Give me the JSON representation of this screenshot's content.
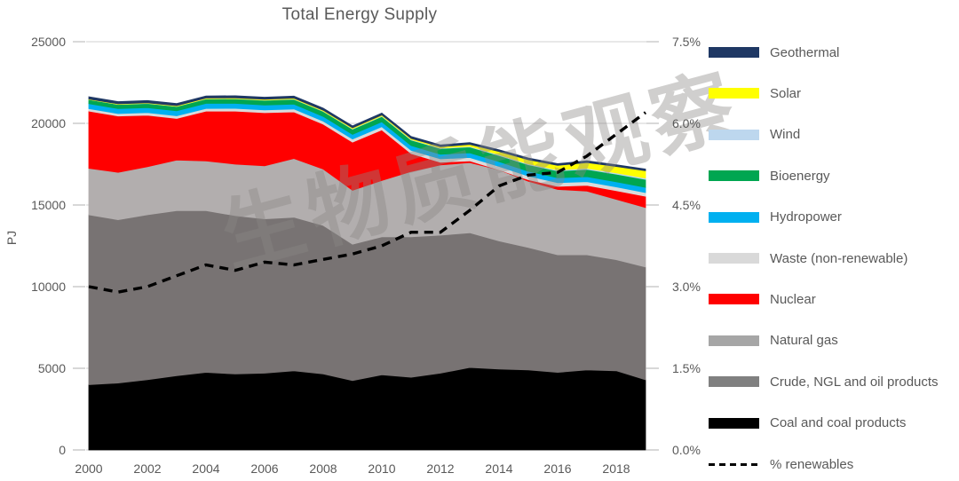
{
  "chart_data": {
    "type": "area",
    "variant": "stacked-area-with-percentage-line",
    "title": "Total Energy Supply",
    "watermark_text": "生物质能观察",
    "x": {
      "years": [
        2000,
        2001,
        2002,
        2003,
        2004,
        2005,
        2006,
        2007,
        2008,
        2009,
        2010,
        2011,
        2012,
        2013,
        2014,
        2015,
        2016,
        2017,
        2018,
        2019
      ],
      "tick_labels": [
        "2000",
        "2002",
        "2004",
        "2006",
        "2008",
        "2010",
        "2012",
        "2014",
        "2016",
        "2018"
      ]
    },
    "y_left": {
      "label": "PJ",
      "min": 0,
      "max": 25000,
      "tick_labels": [
        "0",
        "5000",
        "10000",
        "15000",
        "20000",
        "25000"
      ]
    },
    "y_right": {
      "label": "",
      "min": 0,
      "max": 7.5,
      "tick_labels": [
        "0.0%",
        "1.5%",
        "3.0%",
        "4.5%",
        "6.0%",
        "7.5%"
      ]
    },
    "grid": "horizontal-light-gray",
    "series_stack_bottom_to_top": [
      {
        "key": "coal",
        "name": "Coal and coal products",
        "color": "#000000",
        "values": [
          4000,
          4100,
          4300,
          4550,
          4750,
          4650,
          4700,
          4850,
          4650,
          4250,
          4600,
          4450,
          4700,
          5050,
          4950,
          4900,
          4750,
          4900,
          4850,
          4300
        ]
      },
      {
        "key": "crude",
        "name": "Crude, NGL and oil products",
        "color": "#787373",
        "values": [
          10400,
          10000,
          10100,
          10100,
          9900,
          9700,
          9450,
          9400,
          9100,
          8350,
          8450,
          8600,
          8450,
          8250,
          7850,
          7500,
          7200,
          7050,
          6800,
          6900
        ]
      },
      {
        "key": "gas",
        "name": "Natural gas",
        "color": "#b2aeae",
        "values": [
          2850,
          2900,
          2950,
          3100,
          3050,
          3150,
          3250,
          3600,
          3450,
          3300,
          3450,
          4000,
          4300,
          4300,
          4350,
          4050,
          4000,
          3900,
          3700,
          3650
        ]
      },
      {
        "key": "nuclear",
        "name": "Nuclear",
        "color": "#ff0000",
        "values": [
          3500,
          3450,
          3150,
          2550,
          3050,
          3250,
          3250,
          2850,
          2750,
          2950,
          3100,
          1100,
          170,
          100,
          0,
          100,
          190,
          350,
          530,
          680
        ]
      },
      {
        "key": "waste",
        "name": "Waste (non-renewable)",
        "color": "#dadada",
        "values": [
          150,
          150,
          155,
          160,
          165,
          170,
          175,
          180,
          185,
          190,
          195,
          200,
          205,
          210,
          215,
          220,
          225,
          230,
          230,
          230
        ]
      },
      {
        "key": "hydro",
        "name": "Hydropower",
        "color": "#00b0f0",
        "values": [
          305,
          300,
          305,
          310,
          310,
          305,
          300,
          295,
          290,
          285,
          300,
          290,
          280,
          285,
          290,
          295,
          300,
          305,
          310,
          320
        ]
      },
      {
        "key": "bio",
        "name": "Bioenergy",
        "color": "#00a651",
        "values": [
          250,
          255,
          260,
          265,
          270,
          280,
          290,
          300,
          310,
          320,
          330,
          340,
          350,
          360,
          380,
          400,
          420,
          450,
          470,
          490
        ]
      },
      {
        "key": "wind",
        "name": "Wind",
        "color": "#bdd7ee",
        "values": [
          5,
          6,
          8,
          10,
          12,
          14,
          16,
          18,
          20,
          25,
          30,
          35,
          40,
          45,
          50,
          55,
          60,
          65,
          70,
          80
        ]
      },
      {
        "key": "solar",
        "name": "Solar",
        "color": "#ffff00",
        "values": [
          30,
          32,
          35,
          38,
          40,
          42,
          45,
          48,
          50,
          52,
          55,
          60,
          70,
          110,
          190,
          250,
          280,
          350,
          400,
          450
        ]
      },
      {
        "key": "geo",
        "name": "Geothermal",
        "color": "#1f3864",
        "values": [
          140,
          138,
          136,
          134,
          132,
          130,
          128,
          126,
          124,
          122,
          120,
          118,
          116,
          114,
          112,
          110,
          108,
          106,
          104,
          102
        ]
      }
    ],
    "line_series": {
      "key": "pct_renewables",
      "name": "% renewables",
      "axis": "right",
      "style": "dashed",
      "color": "#000000",
      "values": [
        3.0,
        2.9,
        3.0,
        3.2,
        3.4,
        3.3,
        3.45,
        3.4,
        3.5,
        3.6,
        3.75,
        4.0,
        4.0,
        4.4,
        4.85,
        5.05,
        5.1,
        5.4,
        5.8,
        6.2
      ]
    },
    "legend_top_to_bottom": [
      {
        "label": "Geothermal",
        "color": "#1f3864",
        "type": "swatch"
      },
      {
        "label": "Solar",
        "color": "#ffff00",
        "type": "swatch"
      },
      {
        "label": "Wind",
        "color": "#bdd7ee",
        "type": "swatch"
      },
      {
        "label": "Bioenergy",
        "color": "#00a651",
        "type": "swatch"
      },
      {
        "label": "Hydropower",
        "color": "#00b0f0",
        "type": "swatch"
      },
      {
        "label": "Waste (non-renewable)",
        "color": "#d9d9d9",
        "type": "swatch"
      },
      {
        "label": "Nuclear",
        "color": "#ff0000",
        "type": "swatch"
      },
      {
        "label": "Natural gas",
        "color": "#a6a6a6",
        "type": "swatch"
      },
      {
        "label": "Crude, NGL and oil products",
        "color": "#808080",
        "type": "swatch"
      },
      {
        "label": "Coal and coal products",
        "color": "#000000",
        "type": "swatch"
      },
      {
        "label": "% renewables",
        "color": "#000000",
        "type": "dash"
      }
    ],
    "colors": {
      "grid": "#d9d9d9",
      "axis_text": "#595959",
      "title_text": "#595959"
    }
  }
}
